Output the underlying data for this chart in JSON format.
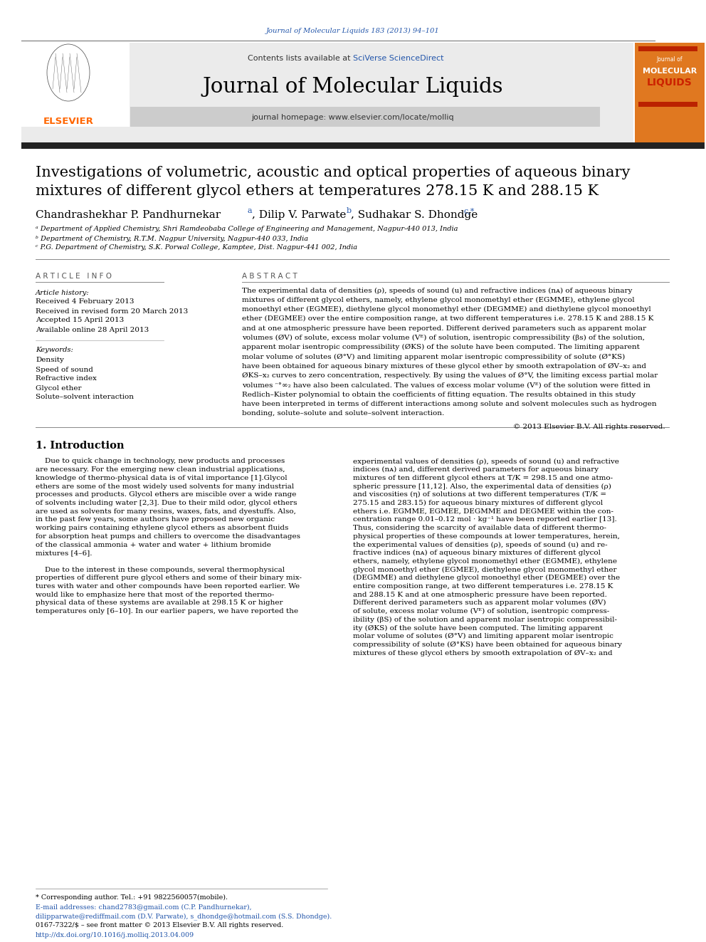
{
  "page_width": 9.92,
  "page_height": 13.23,
  "background_color": "#ffffff",
  "journal_ref": "Journal of Molecular Liquids 183 (2013) 94–101",
  "journal_ref_color": "#2255aa",
  "header_bg": "#e8e8e8",
  "contents_text": "Contents lists available at ",
  "sciverse_text": "SciVerse ScienceDirect",
  "sciverse_color": "#2255aa",
  "journal_title": "Journal of Molecular Liquids",
  "homepage_text": "journal homepage: www.elsevier.com/locate/molliq",
  "paper_title_line1": "Investigations of volumetric, acoustic and optical properties of aqueous binary",
  "paper_title_line2": "mixtures of different glycol ethers at temperatures 278.15 K and 288.15 K",
  "superscripts_color": "#2255aa",
  "affil_a": "ᵃ Department of Applied Chemistry, Shri Ramdeobaba College of Engineering and Management, Nagpur-440 013, India",
  "affil_b": "ᵇ Department of Chemistry, R.T.M. Nagpur University, Nagpur-440 033, India",
  "affil_c": "ᶜ P.G. Department of Chemistry, S.K. Porwal College, Kamptee, Dist. Nagpur-441 002, India",
  "article_info_header": "A R T I C L E   I N F O",
  "abstract_header": "A B S T R A C T",
  "article_history_label": "Article history:",
  "received1": "Received 4 February 2013",
  "received2": "Received in revised form 20 March 2013",
  "accepted": "Accepted 15 April 2013",
  "available": "Available online 28 April 2013",
  "keywords_label": "Keywords:",
  "keyword1": "Density",
  "keyword2": "Speed of sound",
  "keyword3": "Refractive index",
  "keyword4": "Glycol ether",
  "keyword5": "Solute–solvent interaction",
  "copyright": "© 2013 Elsevier B.V. All rights reserved.",
  "intro_header": "1. Introduction",
  "footer_note": "* Corresponding author. Tel.: +91 9822560057(mobile).",
  "footer_email1": "E-mail addresses: chand2783@gmail.com (C.P. Pandhurnekar),",
  "footer_email2": "dilipparwate@rediffmail.com (D.V. Parwate), s_dhondge@hotmail.com (S.S. Dhondge).",
  "footer_issn": "0167-7322/$ – see front matter © 2013 Elsevier B.V. All rights reserved.",
  "footer_doi": "http://dx.doi.org/10.1016/j.molliq.2013.04.009",
  "elsevier_color": "#ff6600",
  "orange_box_color": "#e07820",
  "thick_bar_color": "#222222"
}
